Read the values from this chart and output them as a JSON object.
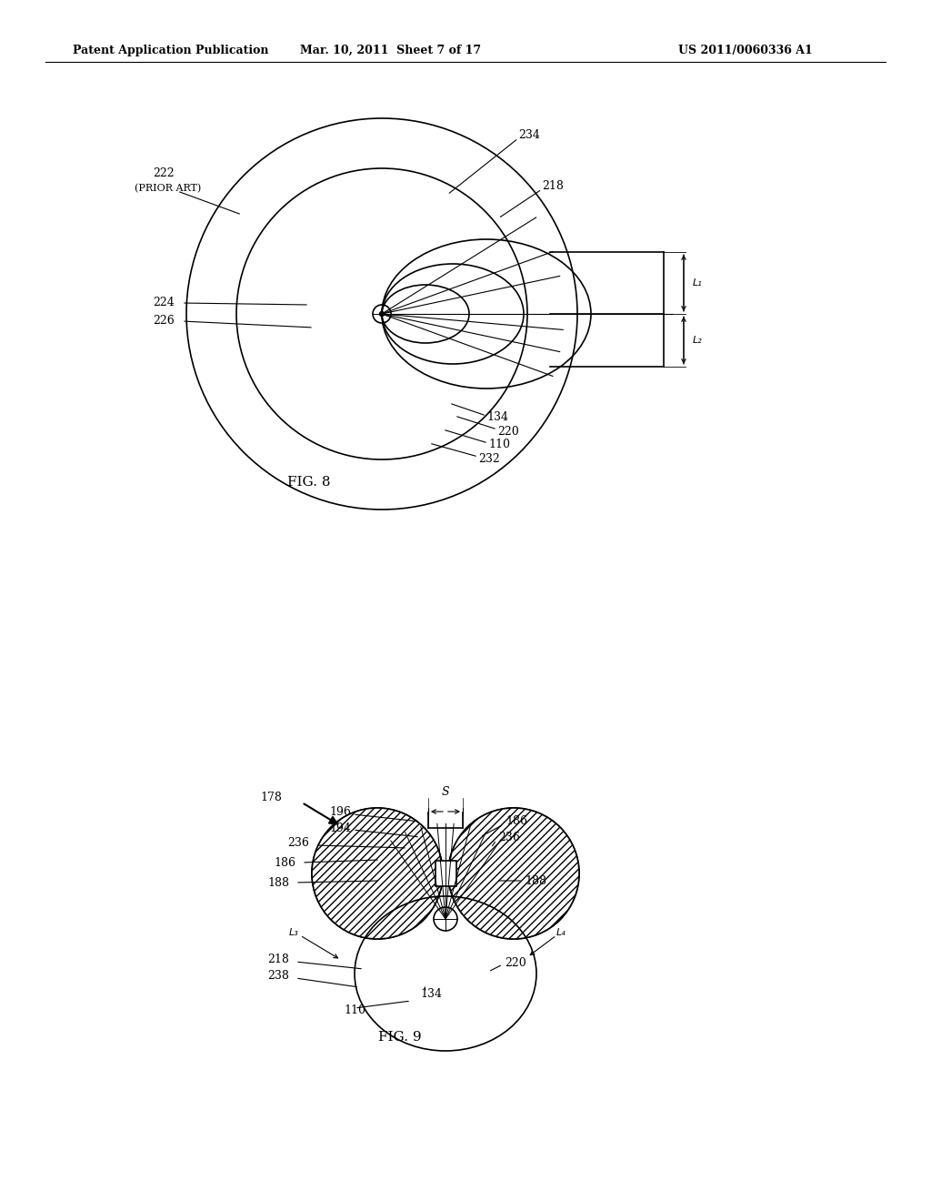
{
  "bg_color": "#ffffff",
  "line_color": "#000000",
  "header_text": "Patent Application Publication",
  "header_date": "Mar. 10, 2011  Sheet 7 of 17",
  "header_patent": "US 2011/0060336 A1",
  "fig8_label": "FIG. 8",
  "fig9_label": "FIG. 9"
}
